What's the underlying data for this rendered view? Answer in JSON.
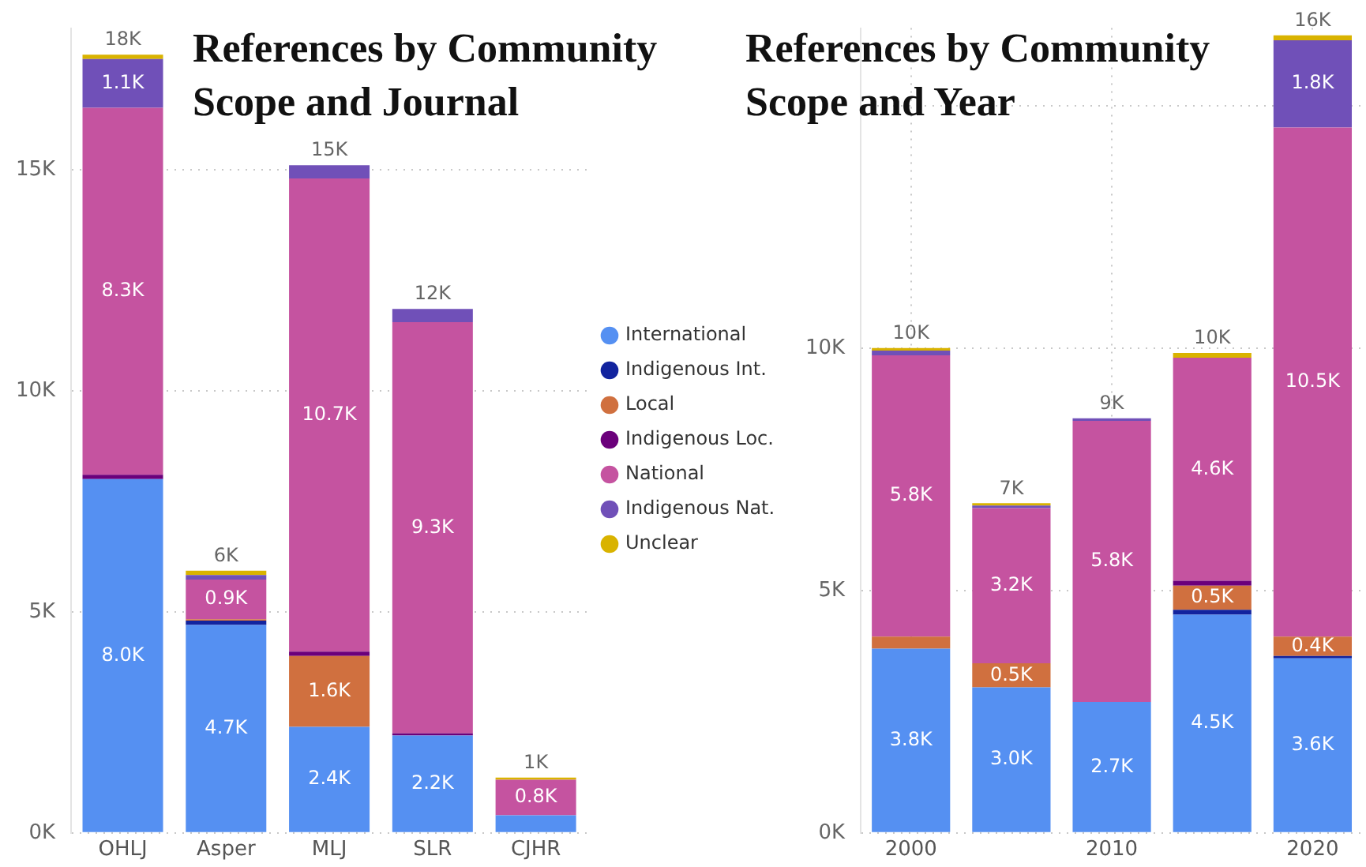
{
  "chart_data": [
    {
      "type": "bar",
      "title": "References by Community Scope and Journal",
      "stacked": true,
      "categories": [
        "OHLJ",
        "Asper",
        "MLJ",
        "SLR",
        "CJHR"
      ],
      "series": [
        {
          "name": "International",
          "color": "#5590f2",
          "values": [
            8000,
            4700,
            2400,
            2200,
            400
          ],
          "value_labels": [
            "8.0K",
            "4.7K",
            "2.4K",
            "2.2K",
            null
          ]
        },
        {
          "name": "Indigenous Int.",
          "color": "#12239e",
          "values": [
            0,
            100,
            0,
            0,
            0
          ],
          "value_labels": [
            null,
            null,
            null,
            null,
            null
          ]
        },
        {
          "name": "Local",
          "color": "#d0703f",
          "values": [
            0,
            30,
            1600,
            0,
            0
          ],
          "value_labels": [
            null,
            null,
            "1.6K",
            null,
            null
          ]
        },
        {
          "name": "Indigenous Loc.",
          "color": "#6b007b",
          "values": [
            100,
            0,
            100,
            50,
            0
          ],
          "value_labels": [
            null,
            null,
            null,
            null,
            null
          ]
        },
        {
          "name": "National",
          "color": "#c553a0",
          "values": [
            8300,
            900,
            10700,
            9300,
            800
          ],
          "value_labels": [
            "8.3K",
            "0.9K",
            "10.7K",
            "9.3K",
            "0.8K"
          ]
        },
        {
          "name": "Indigenous Nat.",
          "color": "#7050b8",
          "values": [
            1100,
            100,
            300,
            300,
            0
          ],
          "value_labels": [
            "1.1K",
            null,
            null,
            null,
            null
          ]
        },
        {
          "name": "Unclear",
          "color": "#d9b300",
          "values": [
            100,
            100,
            0,
            0,
            50
          ],
          "value_labels": [
            null,
            null,
            null,
            null,
            null
          ]
        }
      ],
      "totals": [
        "18K",
        "6K",
        "15K",
        "12K",
        "1K"
      ],
      "ylim": [
        0,
        18200
      ],
      "yticks": [
        {
          "value": 0,
          "label": "0K"
        },
        {
          "value": 5000,
          "label": "5K"
        },
        {
          "value": 10000,
          "label": "10K"
        },
        {
          "value": 15000,
          "label": "15K"
        }
      ],
      "grid": "y",
      "legend": "right"
    },
    {
      "type": "bar",
      "title": "References by Community Scope and Year",
      "stacked": true,
      "categories": [
        "2000",
        null,
        "2010",
        null,
        "2020"
      ],
      "series": [
        {
          "color": "#5590f2",
          "values": [
            3800,
            3000,
            2700,
            4500,
            3600
          ],
          "value_labels": [
            "3.8K",
            "3.0K",
            "2.7K",
            "4.5K",
            "3.6K"
          ]
        },
        {
          "color": "#12239e",
          "values": [
            0,
            0,
            0,
            100,
            50
          ],
          "value_labels": [
            null,
            null,
            null,
            null,
            null
          ]
        },
        {
          "color": "#d0703f",
          "values": [
            250,
            500,
            0,
            500,
            400
          ],
          "value_labels": [
            null,
            "0.5K",
            null,
            "0.5K",
            "0.4K"
          ]
        },
        {
          "color": "#6b007b",
          "values": [
            0,
            0,
            0,
            100,
            0
          ],
          "value_labels": [
            null,
            null,
            null,
            null,
            null
          ]
        },
        {
          "color": "#c553a0",
          "values": [
            5800,
            3200,
            5800,
            4600,
            10500
          ],
          "value_labels": [
            "5.8K",
            "3.2K",
            "5.8K",
            "4.6K",
            "10.5K"
          ]
        },
        {
          "color": "#7050b8",
          "values": [
            100,
            50,
            50,
            0,
            1800
          ],
          "value_labels": [
            null,
            null,
            null,
            null,
            "1.8K"
          ]
        },
        {
          "color": "#d9b300",
          "values": [
            50,
            50,
            0,
            100,
            100
          ],
          "value_labels": [
            null,
            null,
            null,
            null,
            null
          ]
        }
      ],
      "totals": [
        "10K",
        "7K",
        "9K",
        "10K",
        "16K"
      ],
      "ylim": [
        0,
        16600
      ],
      "yticks": [
        {
          "value": 0,
          "label": "0K"
        },
        {
          "value": 5000,
          "label": "5K"
        },
        {
          "value": 10000,
          "label": "10K"
        },
        {
          "value": 15000,
          "label": null
        }
      ],
      "grid": true,
      "legend": false
    }
  ]
}
